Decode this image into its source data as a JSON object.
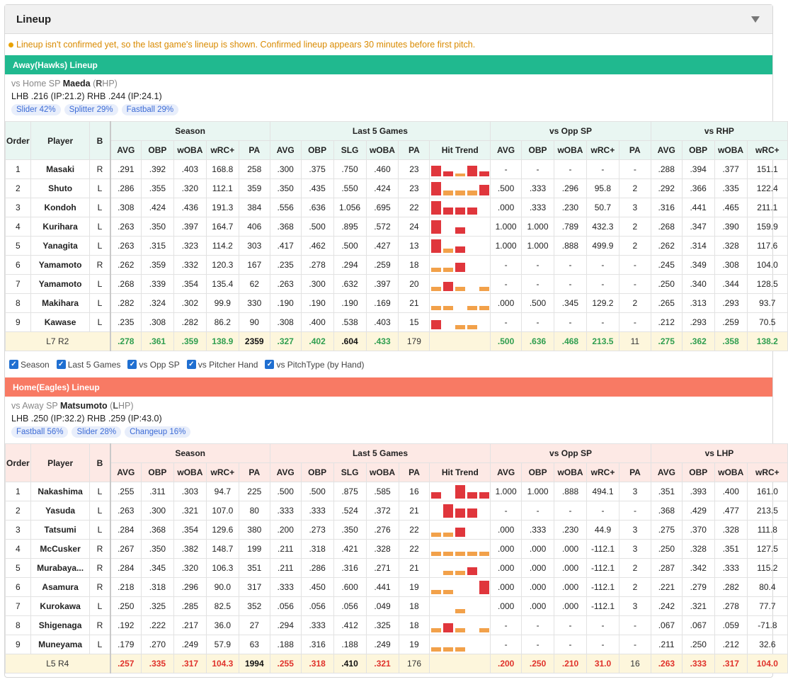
{
  "title": "Lineup",
  "notice": "Lineup isn't confirmed yet, so the last game's lineup is shown. Confirmed lineup appears 30 minutes before first pitch.",
  "checkboxes": [
    "Season",
    "Last 5 Games",
    "vs Opp SP",
    "vs Pitcher Hand",
    "vs PitchType (by Hand)"
  ],
  "headers": {
    "order": "Order",
    "player": "Player",
    "b": "B",
    "season": "Season",
    "last5": "Last 5 Games",
    "vsopp": "vs Opp SP",
    "season_cols": [
      "AVG",
      "OBP",
      "wOBA",
      "wRC+",
      "PA"
    ],
    "last5_cols": [
      "AVG",
      "OBP",
      "SLG",
      "wOBA",
      "PA",
      "Hit Trend"
    ],
    "opp_cols": [
      "AVG",
      "OBP",
      "wOBA",
      "wRC+",
      "PA"
    ],
    "hand_cols": [
      "AVG",
      "OBP",
      "wOBA",
      "wRC+"
    ]
  },
  "away": {
    "bar_label": "Away(Hawks) Lineup",
    "sp_prefix": "vs Home SP ",
    "sp_name": "Maeda",
    "sp_open": " (",
    "sp_hand_letter": "R",
    "sp_hand_rest": "HP)",
    "splits": "LHB .216 (IP:21.2)  RHB .244 (IP:24.1)",
    "pitches": [
      "Slider 42%",
      "Splitter 29%",
      "Fastball 29%"
    ],
    "hand_header": "vs RHP",
    "rows": [
      {
        "order": "1",
        "player": "Masaki",
        "b": "R",
        "season": [
          ".291",
          ".392",
          ".403",
          "168.8",
          "258"
        ],
        "last5": [
          ".300",
          ".375",
          ".750",
          ".460",
          "23"
        ],
        "trend": [
          {
            "h": 0.8,
            "c": "red"
          },
          {
            "h": 0.35,
            "c": "red"
          },
          {
            "h": 0.2,
            "c": "org"
          },
          {
            "h": 0.8,
            "c": "red"
          },
          {
            "h": 0.35,
            "c": "red"
          }
        ],
        "opp": [
          "-",
          "-",
          "-",
          "-",
          "-"
        ],
        "hand": [
          ".288",
          ".394",
          ".377",
          "151.1"
        ]
      },
      {
        "order": "2",
        "player": "Shuto",
        "b": "L",
        "season": [
          ".286",
          ".355",
          ".320",
          "112.1",
          "359"
        ],
        "last5": [
          ".350",
          ".435",
          ".550",
          ".424",
          "23"
        ],
        "trend": [
          {
            "h": 1.0,
            "c": "red"
          },
          {
            "h": 0.35,
            "c": "org"
          },
          {
            "h": 0.35,
            "c": "org"
          },
          {
            "h": 0.35,
            "c": "org"
          },
          {
            "h": 0.8,
            "c": "red"
          }
        ],
        "opp": [
          ".500",
          ".333",
          ".296",
          "95.8",
          "2"
        ],
        "hand": [
          ".292",
          ".366",
          ".335",
          "122.4"
        ]
      },
      {
        "order": "3",
        "player": "Kondoh",
        "b": "L",
        "season": [
          ".308",
          ".424",
          ".436",
          "191.3",
          "384"
        ],
        "last5": [
          ".556",
          ".636",
          "1.056",
          ".695",
          "22"
        ],
        "trend": [
          {
            "h": 1.0,
            "c": "red"
          },
          {
            "h": 0.55,
            "c": "red"
          },
          {
            "h": 0.55,
            "c": "red"
          },
          {
            "h": 0.55,
            "c": "red"
          },
          {
            "h": 0.0,
            "c": "red"
          }
        ],
        "opp": [
          ".000",
          ".333",
          ".230",
          "50.7",
          "3"
        ],
        "hand": [
          ".316",
          ".441",
          ".465",
          "211.1"
        ]
      },
      {
        "order": "4",
        "player": "Kurihara",
        "b": "L",
        "season": [
          ".263",
          ".350",
          ".397",
          "164.7",
          "406"
        ],
        "last5": [
          ".368",
          ".500",
          ".895",
          ".572",
          "24"
        ],
        "trend": [
          {
            "h": 1.0,
            "c": "red"
          },
          {
            "h": 0.0,
            "c": "red"
          },
          {
            "h": 0.45,
            "c": "red"
          },
          {
            "h": 0.0,
            "c": "red"
          },
          {
            "h": 0.0,
            "c": "red"
          }
        ],
        "opp": [
          "1.000",
          "1.000",
          ".789",
          "432.3",
          "2"
        ],
        "hand": [
          ".268",
          ".347",
          ".390",
          "159.9"
        ]
      },
      {
        "order": "5",
        "player": "Yanagita",
        "b": "L",
        "season": [
          ".263",
          ".315",
          ".323",
          "114.2",
          "303"
        ],
        "last5": [
          ".417",
          ".462",
          ".500",
          ".427",
          "13"
        ],
        "trend": [
          {
            "h": 1.0,
            "c": "red"
          },
          {
            "h": 0.3,
            "c": "org"
          },
          {
            "h": 0.45,
            "c": "red"
          },
          {
            "h": 0.0,
            "c": "red"
          },
          {
            "h": 0.0,
            "c": "red"
          }
        ],
        "opp": [
          "1.000",
          "1.000",
          ".888",
          "499.9",
          "2"
        ],
        "hand": [
          ".262",
          ".314",
          ".328",
          "117.6"
        ]
      },
      {
        "order": "6",
        "player": "Yamamoto",
        "b": "R",
        "season": [
          ".262",
          ".359",
          ".332",
          "120.3",
          "167"
        ],
        "last5": [
          ".235",
          ".278",
          ".294",
          ".259",
          "18"
        ],
        "trend": [
          {
            "h": 0.3,
            "c": "org"
          },
          {
            "h": 0.3,
            "c": "org"
          },
          {
            "h": 0.7,
            "c": "red"
          },
          {
            "h": 0.0,
            "c": "red"
          },
          {
            "h": 0.0,
            "c": "red"
          }
        ],
        "opp": [
          "-",
          "-",
          "-",
          "-",
          "-"
        ],
        "hand": [
          ".245",
          ".349",
          ".308",
          "104.0"
        ]
      },
      {
        "order": "7",
        "player": "Yamamoto",
        "b": "L",
        "season": [
          ".268",
          ".339",
          ".354",
          "135.4",
          "62"
        ],
        "last5": [
          ".263",
          ".300",
          ".632",
          ".397",
          "20"
        ],
        "trend": [
          {
            "h": 0.3,
            "c": "org"
          },
          {
            "h": 0.7,
            "c": "red"
          },
          {
            "h": 0.3,
            "c": "org"
          },
          {
            "h": 0.0,
            "c": "red"
          },
          {
            "h": 0.3,
            "c": "org"
          }
        ],
        "opp": [
          "-",
          "-",
          "-",
          "-",
          "-"
        ],
        "hand": [
          ".250",
          ".340",
          ".344",
          "128.5"
        ]
      },
      {
        "order": "8",
        "player": "Makihara",
        "b": "L",
        "season": [
          ".282",
          ".324",
          ".302",
          "99.9",
          "330"
        ],
        "last5": [
          ".190",
          ".190",
          ".190",
          ".169",
          "21"
        ],
        "trend": [
          {
            "h": 0.3,
            "c": "org"
          },
          {
            "h": 0.3,
            "c": "org"
          },
          {
            "h": 0.0,
            "c": "red"
          },
          {
            "h": 0.3,
            "c": "org"
          },
          {
            "h": 0.3,
            "c": "org"
          }
        ],
        "opp": [
          ".000",
          ".500",
          ".345",
          "129.2",
          "2"
        ],
        "hand": [
          ".265",
          ".313",
          ".293",
          "93.7"
        ]
      },
      {
        "order": "9",
        "player": "Kawase",
        "b": "L",
        "season": [
          ".235",
          ".308",
          ".282",
          "86.2",
          "90"
        ],
        "last5": [
          ".308",
          ".400",
          ".538",
          ".403",
          "15"
        ],
        "trend": [
          {
            "h": 0.7,
            "c": "red"
          },
          {
            "h": 0.0,
            "c": "red"
          },
          {
            "h": 0.3,
            "c": "org"
          },
          {
            "h": 0.3,
            "c": "org"
          },
          {
            "h": 0.0,
            "c": "red"
          }
        ],
        "opp": [
          "-",
          "-",
          "-",
          "-",
          "-"
        ],
        "hand": [
          ".212",
          ".293",
          ".259",
          "70.5"
        ]
      }
    ],
    "summary": {
      "label_a": "L7",
      "label_b": " R2",
      "season": [
        ".278",
        ".361",
        ".359",
        "138.9",
        "2359"
      ],
      "last5": [
        ".327",
        ".402",
        ".604",
        ".433",
        "179"
      ],
      "opp": [
        ".500",
        ".636",
        ".468",
        "213.5",
        "11"
      ],
      "hand": [
        ".275",
        ".362",
        ".358",
        "138.2"
      ]
    }
  },
  "home": {
    "bar_label": "Home(Eagles) Lineup",
    "sp_prefix": "vs Away SP ",
    "sp_name": "Matsumoto",
    "sp_open": " (",
    "sp_hand_letter": "L",
    "sp_hand_rest": "HP)",
    "splits": "LHB .250 (IP:32.2)  RHB .259 (IP:43.0)",
    "pitches": [
      "Fastball 56%",
      "Slider 28%",
      "Changeup 16%"
    ],
    "hand_header": "vs LHP",
    "rows": [
      {
        "order": "1",
        "player": "Nakashima",
        "b": "L",
        "season": [
          ".255",
          ".311",
          ".303",
          "94.7",
          "225"
        ],
        "last5": [
          ".500",
          ".500",
          ".875",
          ".585",
          "16"
        ],
        "trend": [
          {
            "h": 0.45,
            "c": "red"
          },
          {
            "h": 0.0,
            "c": "red"
          },
          {
            "h": 1.0,
            "c": "red"
          },
          {
            "h": 0.45,
            "c": "red"
          },
          {
            "h": 0.45,
            "c": "red"
          }
        ],
        "opp": [
          "1.000",
          "1.000",
          ".888",
          "494.1",
          "3"
        ],
        "hand": [
          ".351",
          ".393",
          ".400",
          "161.0"
        ]
      },
      {
        "order": "2",
        "player": "Yasuda",
        "b": "L",
        "season": [
          ".263",
          ".300",
          ".321",
          "107.0",
          "80"
        ],
        "last5": [
          ".333",
          ".333",
          ".524",
          ".372",
          "21"
        ],
        "trend": [
          {
            "h": 0.0,
            "c": "red"
          },
          {
            "h": 1.0,
            "c": "red"
          },
          {
            "h": 0.7,
            "c": "red"
          },
          {
            "h": 0.7,
            "c": "red"
          },
          {
            "h": 0.0,
            "c": "red"
          }
        ],
        "opp": [
          "-",
          "-",
          "-",
          "-",
          "-"
        ],
        "hand": [
          ".368",
          ".429",
          ".477",
          "213.5"
        ]
      },
      {
        "order": "3",
        "player": "Tatsumi",
        "b": "L",
        "season": [
          ".284",
          ".368",
          ".354",
          "129.6",
          "380"
        ],
        "last5": [
          ".200",
          ".273",
          ".350",
          ".276",
          "22"
        ],
        "trend": [
          {
            "h": 0.3,
            "c": "org"
          },
          {
            "h": 0.3,
            "c": "org"
          },
          {
            "h": 0.7,
            "c": "red"
          },
          {
            "h": 0.0,
            "c": "red"
          },
          {
            "h": 0.0,
            "c": "red"
          }
        ],
        "opp": [
          ".000",
          ".333",
          ".230",
          "44.9",
          "3"
        ],
        "hand": [
          ".275",
          ".370",
          ".328",
          "111.8"
        ]
      },
      {
        "order": "4",
        "player": "McCusker",
        "b": "R",
        "season": [
          ".267",
          ".350",
          ".382",
          "148.7",
          "199"
        ],
        "last5": [
          ".211",
          ".318",
          ".421",
          ".328",
          "22"
        ],
        "trend": [
          {
            "h": 0.3,
            "c": "org"
          },
          {
            "h": 0.3,
            "c": "org"
          },
          {
            "h": 0.3,
            "c": "org"
          },
          {
            "h": 0.3,
            "c": "org"
          },
          {
            "h": 0.3,
            "c": "org"
          }
        ],
        "opp": [
          ".000",
          ".000",
          ".000",
          "-112.1",
          "3"
        ],
        "hand": [
          ".250",
          ".328",
          ".351",
          "127.5"
        ]
      },
      {
        "order": "5",
        "player": "Murabaya...",
        "b": "R",
        "season": [
          ".284",
          ".345",
          ".320",
          "106.3",
          "351"
        ],
        "last5": [
          ".211",
          ".286",
          ".316",
          ".271",
          "21"
        ],
        "trend": [
          {
            "h": 0.0,
            "c": "red"
          },
          {
            "h": 0.3,
            "c": "org"
          },
          {
            "h": 0.3,
            "c": "org"
          },
          {
            "h": 0.6,
            "c": "red"
          },
          {
            "h": 0.0,
            "c": "red"
          }
        ],
        "opp": [
          ".000",
          ".000",
          ".000",
          "-112.1",
          "2"
        ],
        "hand": [
          ".287",
          ".342",
          ".333",
          "115.2"
        ]
      },
      {
        "order": "6",
        "player": "Asamura",
        "b": "R",
        "season": [
          ".218",
          ".318",
          ".296",
          "90.0",
          "317"
        ],
        "last5": [
          ".333",
          ".450",
          ".600",
          ".441",
          "19"
        ],
        "trend": [
          {
            "h": 0.3,
            "c": "org"
          },
          {
            "h": 0.3,
            "c": "org"
          },
          {
            "h": 0.0,
            "c": "red"
          },
          {
            "h": 0.0,
            "c": "red"
          },
          {
            "h": 1.0,
            "c": "red"
          }
        ],
        "opp": [
          ".000",
          ".000",
          ".000",
          "-112.1",
          "2"
        ],
        "hand": [
          ".221",
          ".279",
          ".282",
          "80.4"
        ]
      },
      {
        "order": "7",
        "player": "Kurokawa",
        "b": "L",
        "season": [
          ".250",
          ".325",
          ".285",
          "82.5",
          "352"
        ],
        "last5": [
          ".056",
          ".056",
          ".056",
          ".049",
          "18"
        ],
        "trend": [
          {
            "h": 0.0,
            "c": "red"
          },
          {
            "h": 0.0,
            "c": "red"
          },
          {
            "h": 0.3,
            "c": "org"
          },
          {
            "h": 0.0,
            "c": "red"
          },
          {
            "h": 0.0,
            "c": "red"
          }
        ],
        "opp": [
          ".000",
          ".000",
          ".000",
          "-112.1",
          "3"
        ],
        "hand": [
          ".242",
          ".321",
          ".278",
          "77.7"
        ]
      },
      {
        "order": "8",
        "player": "Shigenaga",
        "b": "R",
        "season": [
          ".192",
          ".222",
          ".217",
          "36.0",
          "27"
        ],
        "last5": [
          ".294",
          ".333",
          ".412",
          ".325",
          "18"
        ],
        "trend": [
          {
            "h": 0.3,
            "c": "org"
          },
          {
            "h": 0.7,
            "c": "red"
          },
          {
            "h": 0.3,
            "c": "org"
          },
          {
            "h": 0.0,
            "c": "red"
          },
          {
            "h": 0.3,
            "c": "org"
          }
        ],
        "opp": [
          "-",
          "-",
          "-",
          "-",
          "-"
        ],
        "hand": [
          ".067",
          ".067",
          ".059",
          "-71.8"
        ]
      },
      {
        "order": "9",
        "player": "Muneyama",
        "b": "L",
        "season": [
          ".179",
          ".270",
          ".249",
          "57.9",
          "63"
        ],
        "last5": [
          ".188",
          ".316",
          ".188",
          ".249",
          "19"
        ],
        "trend": [
          {
            "h": 0.3,
            "c": "org"
          },
          {
            "h": 0.3,
            "c": "org"
          },
          {
            "h": 0.3,
            "c": "org"
          },
          {
            "h": 0.0,
            "c": "red"
          },
          {
            "h": 0.0,
            "c": "red"
          }
        ],
        "opp": [
          "-",
          "-",
          "-",
          "-",
          "-"
        ],
        "hand": [
          ".211",
          ".250",
          ".212",
          "32.6"
        ]
      }
    ],
    "summary": {
      "label_a": "L5",
      "label_b": " R4",
      "season": [
        ".257",
        ".335",
        ".317",
        "104.3",
        "1994"
      ],
      "last5": [
        ".255",
        ".318",
        ".410",
        ".321",
        "176"
      ],
      "opp": [
        ".200",
        ".250",
        ".210",
        "31.0",
        "16"
      ],
      "hand": [
        ".263",
        ".333",
        ".317",
        "104.0"
      ]
    }
  },
  "colors": {
    "away": "#20b98f",
    "home": "#f87a64",
    "good": "#2f9e4f",
    "bad": "#e0322b",
    "notice": "#d98a00",
    "pill_text": "#3d6cd6",
    "summary_bg": "#fdf6dc"
  },
  "icons": {
    "collapse": "caret-down-icon",
    "checkbox": "checkbox-checked-icon",
    "notice": "dot-icon"
  }
}
